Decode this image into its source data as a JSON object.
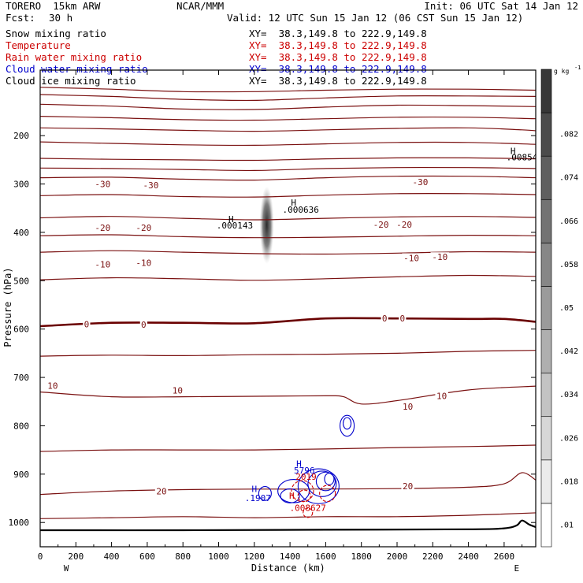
{
  "header": {
    "model": "TORERO  15km ARW",
    "org": "NCAR/MMM",
    "init": "Init: 06 UTC Sat 14 Jan 12",
    "fcst_label": "Fcst:",
    "fcst_value": "30 h",
    "valid": "Valid: 12 UTC Sun 15 Jan 12 (06 CST Sun 15 Jan 12)"
  },
  "fields": [
    {
      "name": "Snow mixing ratio",
      "color": "#000000",
      "xy": "XY=  38.3,149.8 to 222.9,149.8",
      "xy_color": "#000000"
    },
    {
      "name": "Temperature",
      "color": "#cc0000",
      "xy": "XY=  38.3,149.8 to 222.9,149.8",
      "xy_color": "#cc0000"
    },
    {
      "name": "Rain water mixing ratio",
      "color": "#cc0000",
      "xy": "XY=  38.3,149.8 to 222.9,149.8",
      "xy_color": "#cc0000"
    },
    {
      "name": "Cloud water mixing ratio",
      "color": "#0000cc",
      "xy": "XY=  38.3,149.8 to 222.9,149.8",
      "xy_color": "#0000cc"
    },
    {
      "name": "Cloud ice mixing ratio",
      "color": "#000000",
      "xy": "XY=  38.3,149.8 to 222.9,149.8",
      "xy_color": "#000000"
    }
  ],
  "colors": {
    "temperature": "#7a1010",
    "temperature_zero": "#6a0000",
    "cloud_water": "#0000cc",
    "rain": "#cc0000",
    "terrain": "#000000",
    "snow": "#333333"
  },
  "chart_data": {
    "type": "contour",
    "x_axis": {
      "label": "Distance (km)",
      "range": [
        0,
        2780
      ],
      "ticks": [
        0,
        200,
        400,
        600,
        800,
        1000,
        1200,
        1400,
        1600,
        1800,
        2000,
        2200,
        2400,
        2600
      ],
      "left_end_label": "W",
      "right_end_label": "E"
    },
    "y_axis": {
      "label": "Pressure (hPa)",
      "range": [
        1045,
        100
      ],
      "ticks": [
        200,
        300,
        400,
        500,
        600,
        700,
        800,
        900,
        1000
      ],
      "scale": "linear-inverted"
    },
    "colorbar": {
      "unit_label": "g kg",
      "unit_exponent": "-1",
      "levels": [
        ".01",
        ".018",
        ".026",
        ".034",
        ".042",
        ".05",
        ".058",
        ".066",
        ".074",
        ".082"
      ],
      "range": [
        0.006,
        0.09
      ]
    },
    "isotherms": [
      {
        "value": -70,
        "points": [
          [
            0,
            100
          ],
          [
            400,
            104
          ],
          [
            800,
            109
          ],
          [
            1200,
            109
          ],
          [
            1600,
            106
          ],
          [
            2000,
            104
          ],
          [
            2400,
            104
          ],
          [
            2780,
            106
          ]
        ]
      },
      {
        "value": -65,
        "points": [
          [
            0,
            115
          ],
          [
            400,
            119
          ],
          [
            800,
            125
          ],
          [
            1200,
            127
          ],
          [
            1600,
            122
          ],
          [
            2000,
            118
          ],
          [
            2400,
            118
          ],
          [
            2780,
            119
          ]
        ]
      },
      {
        "value": -60,
        "points": [
          [
            0,
            135
          ],
          [
            400,
            139
          ],
          [
            800,
            145
          ],
          [
            1200,
            146
          ],
          [
            1600,
            141
          ],
          [
            2000,
            137
          ],
          [
            2400,
            138
          ],
          [
            2780,
            140
          ]
        ]
      },
      {
        "value": -55,
        "points": [
          [
            0,
            160
          ],
          [
            400,
            163
          ],
          [
            800,
            167
          ],
          [
            1200,
            168
          ],
          [
            1600,
            165
          ],
          [
            2000,
            162
          ],
          [
            2400,
            162
          ],
          [
            2780,
            165
          ]
        ]
      },
      {
        "value": -50,
        "points": [
          [
            0,
            184
          ],
          [
            400,
            186
          ],
          [
            800,
            189
          ],
          [
            1200,
            191
          ],
          [
            1600,
            188
          ],
          [
            2000,
            185
          ],
          [
            2400,
            184
          ],
          [
            2700,
            188
          ],
          [
            2780,
            190
          ]
        ]
      },
      {
        "value": -45,
        "points": [
          [
            0,
            213
          ],
          [
            400,
            216
          ],
          [
            800,
            219
          ],
          [
            1200,
            220
          ],
          [
            1600,
            217
          ],
          [
            2000,
            214
          ],
          [
            2400,
            214
          ],
          [
            2780,
            218
          ]
        ]
      },
      {
        "value": -40,
        "points": [
          [
            0,
            247
          ],
          [
            400,
            249
          ],
          [
            800,
            250
          ],
          [
            1200,
            251
          ],
          [
            1600,
            248
          ],
          [
            2000,
            246
          ],
          [
            2400,
            246
          ],
          [
            2780,
            248
          ]
        ]
      },
      {
        "value": -35,
        "points": [
          [
            0,
            267
          ],
          [
            400,
            268
          ],
          [
            800,
            270
          ],
          [
            1200,
            272
          ],
          [
            1600,
            268
          ],
          [
            2000,
            266
          ],
          [
            2400,
            266
          ],
          [
            2780,
            268
          ]
        ]
      },
      {
        "value": -30,
        "points": [
          [
            0,
            287
          ],
          [
            400,
            286
          ],
          [
            800,
            290
          ],
          [
            1200,
            292
          ],
          [
            1600,
            287
          ],
          [
            2000,
            284
          ],
          [
            2400,
            284
          ],
          [
            2780,
            287
          ]
        ]
      },
      {
        "value": -25,
        "points": [
          [
            0,
            324
          ],
          [
            400,
            322
          ],
          [
            800,
            326
          ],
          [
            1200,
            327
          ],
          [
            1600,
            323
          ],
          [
            2000,
            320
          ],
          [
            2400,
            320
          ],
          [
            2780,
            322
          ]
        ]
      },
      {
        "value": -20,
        "points": [
          [
            0,
            370
          ],
          [
            400,
            367
          ],
          [
            800,
            371
          ],
          [
            1200,
            374
          ],
          [
            1600,
            371
          ],
          [
            2000,
            368
          ],
          [
            2400,
            367
          ],
          [
            2780,
            369
          ]
        ]
      },
      {
        "value": -15,
        "points": [
          [
            0,
            407
          ],
          [
            400,
            405
          ],
          [
            800,
            409
          ],
          [
            1200,
            411
          ],
          [
            1600,
            410
          ],
          [
            2000,
            408
          ],
          [
            2400,
            406
          ],
          [
            2780,
            407
          ]
        ]
      },
      {
        "value": -10,
        "points": [
          [
            0,
            441
          ],
          [
            400,
            438
          ],
          [
            800,
            441
          ],
          [
            1200,
            444
          ],
          [
            1600,
            445
          ],
          [
            2000,
            443
          ],
          [
            2400,
            440
          ],
          [
            2780,
            441
          ]
        ]
      },
      {
        "value": -5,
        "points": [
          [
            0,
            498
          ],
          [
            400,
            494
          ],
          [
            800,
            496
          ],
          [
            1200,
            499
          ],
          [
            1600,
            496
          ],
          [
            2000,
            492
          ],
          [
            2400,
            489
          ],
          [
            2780,
            491
          ]
        ]
      },
      {
        "value": 0,
        "points": [
          [
            0,
            594
          ],
          [
            400,
            587
          ],
          [
            800,
            587
          ],
          [
            1200,
            588
          ],
          [
            1600,
            578
          ],
          [
            2000,
            578
          ],
          [
            2400,
            579
          ],
          [
            2600,
            579
          ],
          [
            2780,
            585
          ]
        ]
      },
      {
        "value": 5,
        "points": [
          [
            0,
            656
          ],
          [
            400,
            654
          ],
          [
            800,
            655
          ],
          [
            1200,
            653
          ],
          [
            1600,
            652
          ],
          [
            2000,
            650
          ],
          [
            2400,
            646
          ],
          [
            2780,
            644
          ]
        ]
      },
      {
        "value": 10,
        "points": [
          [
            0,
            730
          ],
          [
            400,
            740
          ],
          [
            800,
            740
          ],
          [
            1200,
            739
          ],
          [
            1600,
            738
          ],
          [
            1700,
            740
          ],
          [
            1800,
            755
          ],
          [
            2000,
            748
          ],
          [
            2400,
            726
          ],
          [
            2780,
            718
          ]
        ]
      },
      {
        "value": 15,
        "points": [
          [
            0,
            853
          ],
          [
            400,
            850
          ],
          [
            800,
            850
          ],
          [
            1200,
            850
          ],
          [
            1600,
            848
          ],
          [
            2000,
            845
          ],
          [
            2400,
            843
          ],
          [
            2780,
            840
          ]
        ]
      },
      {
        "value": 20,
        "points": [
          [
            0,
            942
          ],
          [
            400,
            935
          ],
          [
            800,
            932
          ],
          [
            1200,
            931
          ],
          [
            1500,
            931
          ],
          [
            2000,
            930
          ],
          [
            2400,
            927
          ],
          [
            2600,
            920
          ],
          [
            2700,
            897
          ],
          [
            2780,
            913
          ]
        ]
      },
      {
        "value": 25,
        "points": [
          [
            0,
            992
          ],
          [
            400,
            990
          ],
          [
            800,
            988
          ],
          [
            1200,
            990
          ],
          [
            1600,
            988
          ],
          [
            2000,
            988
          ],
          [
            2400,
            985
          ],
          [
            2780,
            980
          ]
        ]
      }
    ],
    "isotherm_labels": [
      {
        "text": "-30",
        "x": 350,
        "p": 300
      },
      {
        "text": "-30",
        "x": 620,
        "p": 302
      },
      {
        "text": "-30",
        "x": 2130,
        "p": 296
      },
      {
        "text": "-20",
        "x": 350,
        "p": 390
      },
      {
        "text": "-20",
        "x": 580,
        "p": 390
      },
      {
        "text": "-20",
        "x": 1910,
        "p": 384
      },
      {
        "text": "-20",
        "x": 2040,
        "p": 384
      },
      {
        "text": "-10",
        "x": 350,
        "p": 466
      },
      {
        "text": "-10",
        "x": 580,
        "p": 463
      },
      {
        "text": "-10",
        "x": 2080,
        "p": 453
      },
      {
        "text": "-10",
        "x": 2240,
        "p": 451
      },
      {
        "text": "0",
        "x": 260,
        "p": 590
      },
      {
        "text": "0",
        "x": 580,
        "p": 591
      },
      {
        "text": "0",
        "x": 1930,
        "p": 578
      },
      {
        "text": "0",
        "x": 2030,
        "p": 578
      },
      {
        "text": "10",
        "x": 70,
        "p": 717
      },
      {
        "text": "10",
        "x": 770,
        "p": 727
      },
      {
        "text": "10",
        "x": 2060,
        "p": 760
      },
      {
        "text": "10",
        "x": 2250,
        "p": 738
      },
      {
        "text": "20",
        "x": 680,
        "p": 935
      },
      {
        "text": "20",
        "x": 2060,
        "p": 925
      }
    ],
    "extrema_labels": [
      {
        "text": "H",
        "x": 1070,
        "p": 379,
        "color": "#000000"
      },
      {
        "text": ".000143",
        "x": 1090,
        "p": 392,
        "color": "#000000"
      },
      {
        "text": "H",
        "x": 1420,
        "p": 345,
        "color": "#000000"
      },
      {
        "text": ".000636",
        "x": 1460,
        "p": 359,
        "color": "#000000"
      },
      {
        "text": "H",
        "x": 2650,
        "p": 238,
        "color": "#000000"
      },
      {
        "text": ".00854",
        "x": 2700,
        "p": 251,
        "color": "#000000"
      },
      {
        "text": "H",
        "x": 1450,
        "p": 885,
        "color": "#0000cc"
      },
      {
        "text": "5796",
        "x": 1480,
        "p": 899,
        "color": "#0000cc"
      },
      {
        "text": "H",
        "x": 1200,
        "p": 937,
        "color": "#0000cc"
      },
      {
        "text": ".1907",
        "x": 1220,
        "p": 956,
        "color": "#0000cc"
      },
      {
        "text": "2019",
        "x": 1490,
        "p": 912,
        "color": "#cc0000"
      },
      {
        "text": "H",
        "x": 1410,
        "p": 951,
        "color": "#cc0000"
      },
      {
        "text": ".008627",
        "x": 1500,
        "p": 976,
        "color": "#cc0000"
      }
    ],
    "terrain": [
      [
        0,
        1016
      ],
      [
        800,
        1016
      ],
      [
        1600,
        1015
      ],
      [
        2400,
        1014
      ],
      [
        2600,
        1012
      ],
      [
        2670,
        1006
      ],
      [
        2700,
        996
      ],
      [
        2740,
        1004
      ],
      [
        2780,
        1010
      ]
    ],
    "snow_column": {
      "x": 1270,
      "p_top": 305,
      "p_bottom": 465
    }
  }
}
